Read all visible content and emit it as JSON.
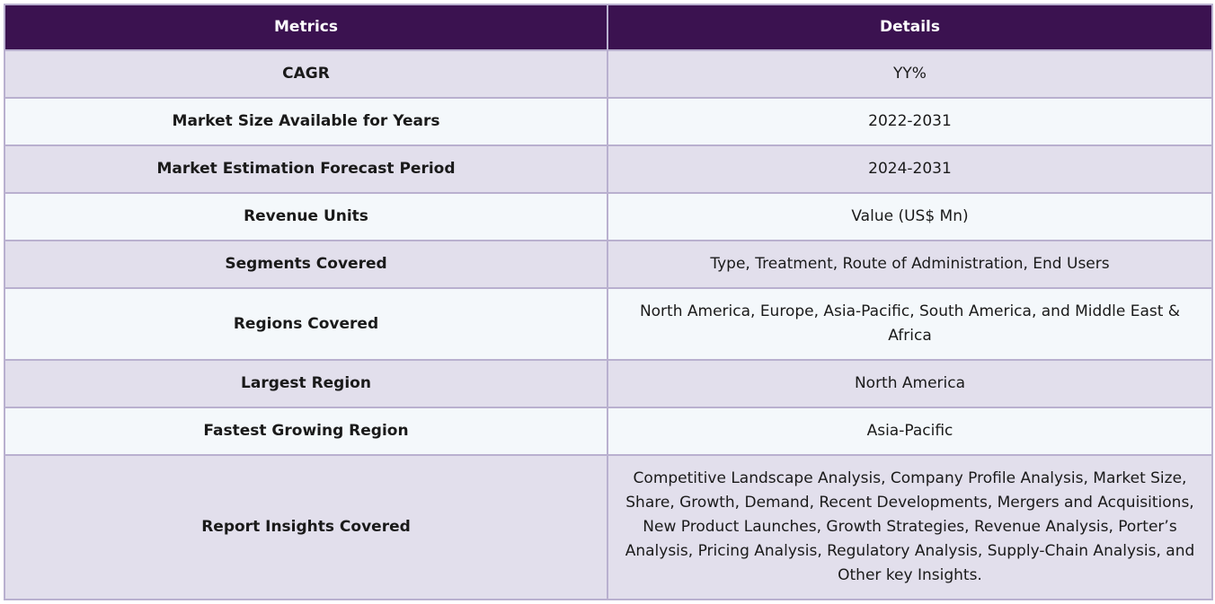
{
  "table": {
    "headers": {
      "metrics": "Metrics",
      "details": "Details"
    },
    "rows": [
      {
        "metric": "CAGR",
        "detail": "YY%"
      },
      {
        "metric": "Market Size Available for Years",
        "detail": "2022-2031"
      },
      {
        "metric": "Market Estimation Forecast Period",
        "detail": "2024-2031"
      },
      {
        "metric": "Revenue Units",
        "detail": "Value (US$ Mn)"
      },
      {
        "metric": "Segments Covered",
        "detail": "Type, Treatment, Route of Administration, End Users"
      },
      {
        "metric": "Regions Covered",
        "detail": "North America, Europe, Asia-Pacific, South America, and Middle East & Africa"
      },
      {
        "metric": "Largest Region",
        "detail": "North America"
      },
      {
        "metric": "Fastest Growing Region",
        "detail": "Asia-Pacific"
      },
      {
        "metric": "Report Insights Covered",
        "detail": "Competitive Landscape Analysis, Company Profile Analysis, Market Size, Share, Growth, Demand, Recent Developments, Mergers and Acquisitions, New Product Launches, Growth Strategies, Revenue Analysis, Porter’s Analysis, Pricing Analysis, Regulatory Analysis, Supply-Chain Analysis, and Other key Insights."
      }
    ]
  },
  "colors": {
    "header_bg": "#3b1250",
    "row_odd_bg": "#e2dfec",
    "row_even_bg": "#f4f8fb",
    "border": "#b9b0cf"
  }
}
